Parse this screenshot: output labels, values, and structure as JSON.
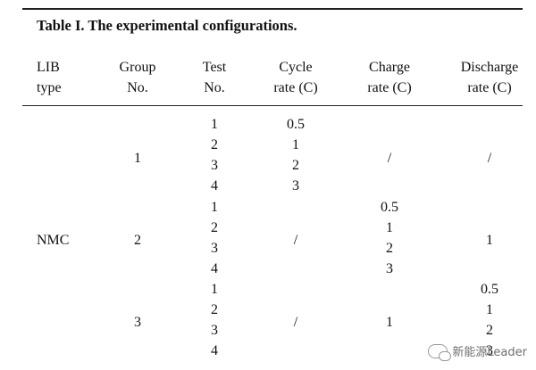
{
  "caption": "Table I.  The experimental configurations.",
  "headers": {
    "lib_type": [
      "LIB",
      "type"
    ],
    "group_no": [
      "Group",
      "No."
    ],
    "test_no": [
      "Test",
      "No."
    ],
    "cycle_rate": [
      "Cycle",
      "rate (C)"
    ],
    "charge_rate": [
      "Charge",
      "rate (C)"
    ],
    "discharge_rate": [
      "Discharge",
      "rate (C)"
    ]
  },
  "lib_type": "NMC",
  "groups": [
    {
      "group": "1",
      "tests": [
        "1",
        "2",
        "3",
        "4"
      ],
      "cycle_rate": [
        "0.5",
        "1",
        "2",
        "3"
      ],
      "charge_rate": "/",
      "discharge_rate": "/"
    },
    {
      "group": "2",
      "tests": [
        "1",
        "2",
        "3",
        "4"
      ],
      "cycle_rate": "/",
      "charge_rate": [
        "0.5",
        "1",
        "2",
        "3"
      ],
      "discharge_rate": "1"
    },
    {
      "group": "3",
      "tests": [
        "1",
        "2",
        "3",
        "4"
      ],
      "cycle_rate": "/",
      "charge_rate": "1",
      "discharge_rate": [
        "0.5",
        "1",
        "2",
        "3"
      ]
    }
  ],
  "watermark": "新能源Leader"
}
